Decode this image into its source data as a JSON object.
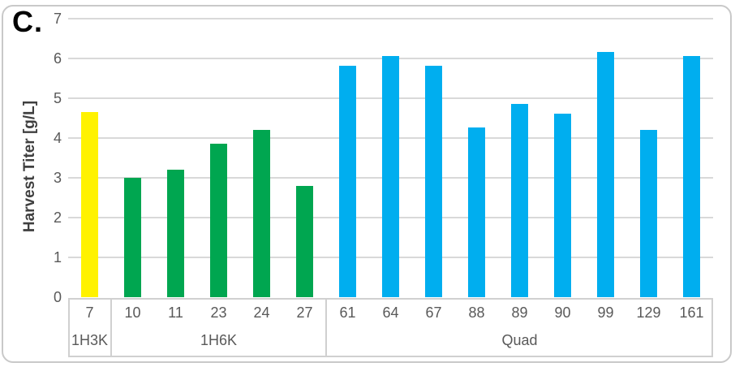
{
  "panel_label": "C.",
  "chart_data": {
    "type": "bar",
    "title": "",
    "xlabel": "",
    "ylabel": "Harvest Titer [g/L]",
    "ylim": [
      0,
      7
    ],
    "yticks": [
      "0",
      "1",
      "2",
      "3",
      "4",
      "5",
      "6",
      "7"
    ],
    "grid": true,
    "legend_position": "none",
    "groups": [
      {
        "name": "1H3K",
        "color": "#FFF200",
        "categories": [
          "7"
        ],
        "values": [
          4.65
        ]
      },
      {
        "name": "1H6K",
        "color": "#00A650",
        "categories": [
          "10",
          "11",
          "23",
          "24",
          "27"
        ],
        "values": [
          3.0,
          3.2,
          3.85,
          4.2,
          2.8
        ]
      },
      {
        "name": "Quad",
        "color": "#00AEEF",
        "categories": [
          "61",
          "64",
          "67",
          "88",
          "89",
          "90",
          "99",
          "129",
          "161"
        ],
        "values": [
          5.8,
          6.05,
          5.8,
          4.25,
          4.85,
          4.6,
          6.15,
          4.2,
          6.05
        ]
      }
    ]
  },
  "colors": {
    "grid_line": "#D9D9D9",
    "axis_box_border": "#D0D0D0",
    "tick_text": "#595959",
    "axis_title_text": "#3F3F3F",
    "card_border": "#C9C9C9",
    "background": "#FFFFFF"
  }
}
